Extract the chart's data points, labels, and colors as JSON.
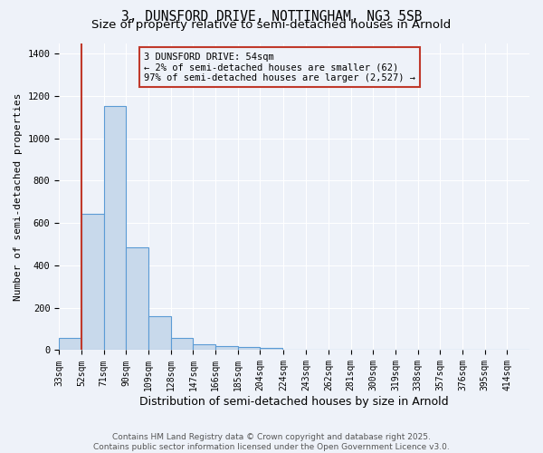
{
  "title_line1": "3, DUNSFORD DRIVE, NOTTINGHAM, NG3 5SB",
  "title_line2": "Size of property relative to semi-detached houses in Arnold",
  "xlabel": "Distribution of semi-detached houses by size in Arnold",
  "ylabel": "Number of semi-detached properties",
  "categories": [
    "33sqm",
    "52sqm",
    "71sqm",
    "90sqm",
    "109sqm",
    "128sqm",
    "147sqm",
    "166sqm",
    "185sqm",
    "204sqm",
    "224sqm",
    "243sqm",
    "262sqm",
    "281sqm",
    "300sqm",
    "319sqm",
    "338sqm",
    "357sqm",
    "376sqm",
    "395sqm",
    "414sqm"
  ],
  "bin_edges": [
    33,
    52,
    71,
    90,
    109,
    128,
    147,
    166,
    185,
    204,
    224,
    243,
    262,
    281,
    300,
    319,
    338,
    357,
    376,
    395,
    414
  ],
  "values": [
    57,
    643,
    1153,
    487,
    160,
    57,
    27,
    17,
    13,
    10,
    0,
    0,
    0,
    0,
    0,
    0,
    0,
    0,
    0,
    0,
    0
  ],
  "bar_color": "#c8d9eb",
  "bar_edge_color": "#5b9bd5",
  "property_line_x": 52,
  "property_line_color": "#c0392b",
  "annotation_title": "3 DUNSFORD DRIVE: 54sqm",
  "annotation_line1": "← 2% of semi-detached houses are smaller (62)",
  "annotation_line2": "97% of semi-detached houses are larger (2,527) →",
  "annotation_box_color": "#c0392b",
  "ylim": [
    0,
    1450
  ],
  "xlim_min": 33,
  "xlim_max": 433,
  "background_color": "#eef2f9",
  "grid_color": "#ffffff",
  "footer_line1": "Contains HM Land Registry data © Crown copyright and database right 2025.",
  "footer_line2": "Contains public sector information licensed under the Open Government Licence v3.0.",
  "title_fontsize": 10.5,
  "subtitle_fontsize": 9.5,
  "xlabel_fontsize": 9,
  "ylabel_fontsize": 8,
  "tick_fontsize": 7,
  "annot_fontsize": 7.5,
  "footer_fontsize": 6.5,
  "yticks": [
    0,
    200,
    400,
    600,
    800,
    1000,
    1200,
    1400
  ]
}
